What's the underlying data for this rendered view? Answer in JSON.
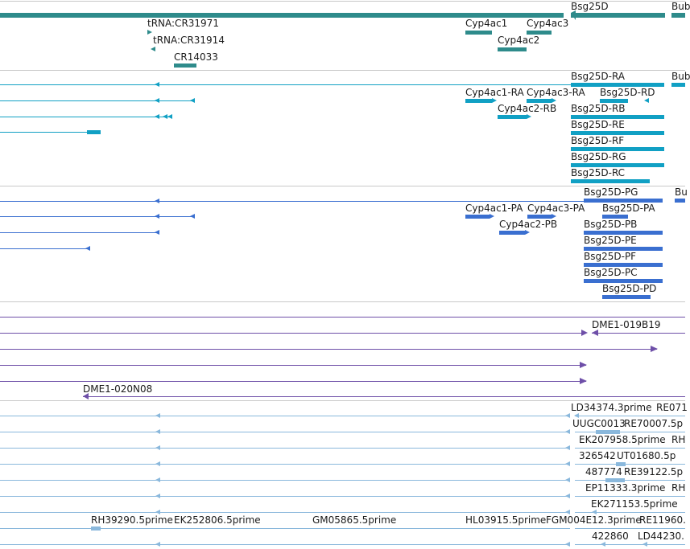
{
  "colors": {
    "gene": "#2e8b8b",
    "transcript": "#11a0c4",
    "protein": "#3a6fd0",
    "clone": "#6e4fa8",
    "est": "#8ab8dc",
    "separator": "#c8c8c8"
  },
  "tracks": {
    "genes": {
      "labels": [
        "Bsg25D",
        "Bub",
        "tRNA:CR31971",
        "tRNA:CR31914",
        "CR14033",
        "Cyp4ac1",
        "Cyp4ac3",
        "Cyp4ac2"
      ]
    },
    "transcripts": {
      "labels": [
        "Bsg25D-RA",
        "Bub",
        "Cyp4ac1-RA",
        "Cyp4ac3-RA",
        "Bsg25D-RD",
        "Cyp4ac2-RB",
        "Bsg25D-RB",
        "Bsg25D-RE",
        "Bsg25D-RF",
        "Bsg25D-RG",
        "Bsg25D-RC"
      ]
    },
    "proteins": {
      "labels": [
        "Bsg25D-PG",
        "Bu",
        "Cyp4ac1-PA",
        "Cyp4ac3-PA",
        "Bsg25D-PA",
        "Cyp4ac2-PB",
        "Bsg25D-PB",
        "Bsg25D-PE",
        "Bsg25D-PF",
        "Bsg25D-PC",
        "Bsg25D-PD"
      ]
    },
    "clones": {
      "labels": [
        "DME1-019B19",
        "DME1-020N08"
      ]
    },
    "ests": {
      "labels": [
        "LD34374.3prime",
        "RE071",
        "UUGC0013",
        "RE70007.5p",
        "EK207958.5prime",
        "RH",
        "326542",
        "UT01680.5p",
        "487774",
        "RE39122.5p",
        "EP11333.3prime",
        "RH",
        "EK271153.5prime",
        "RH39290.5prime",
        "EK252806.5prime",
        "GM05865.5prime",
        "HL03915.5prime",
        "FGM004E12.3prime",
        "RE11960.",
        "422860",
        "LD44230."
      ]
    }
  }
}
